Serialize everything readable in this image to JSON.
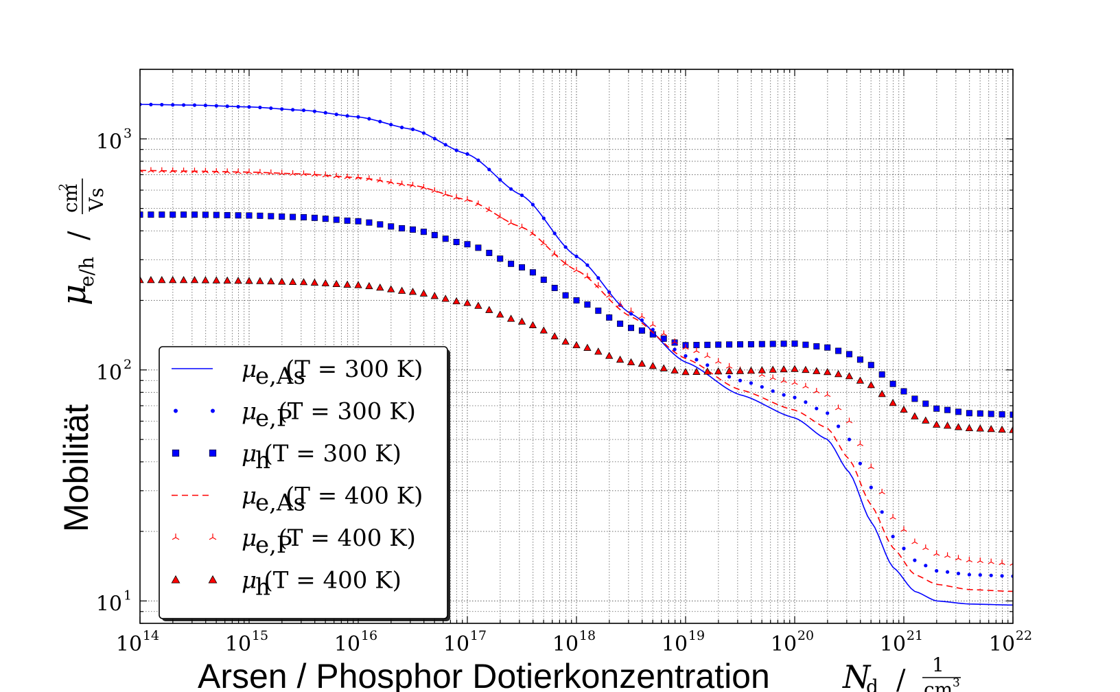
{
  "chart_data": {
    "type": "scatter",
    "title": "",
    "xscale": "log",
    "yscale": "log",
    "xlim": [
      100000000000000.0,
      1e+22
    ],
    "ylim": [
      8,
      2000
    ],
    "grid": true,
    "legend_position": "lower-left",
    "xlabel": {
      "text": "Arsen / Phosphor Dotierkonzentration",
      "symbol": "N",
      "symbol_sub": "d",
      "unit_numerator": "1",
      "unit_denominator": "cm",
      "unit_denominator_exp": "3"
    },
    "ylabel": {
      "text": "Mobilität",
      "symbol": "μ",
      "symbol_sub": "e/h",
      "unit_numerator": "cm",
      "unit_numerator_exp": "2",
      "unit_denominator": "Vs"
    },
    "x_ticks": [
      {
        "base": "10",
        "exp": "14",
        "value": 100000000000000.0
      },
      {
        "base": "10",
        "exp": "15",
        "value": 1000000000000000.0
      },
      {
        "base": "10",
        "exp": "16",
        "value": 1e+16
      },
      {
        "base": "10",
        "exp": "17",
        "value": 1e+17
      },
      {
        "base": "10",
        "exp": "18",
        "value": 1e+18
      },
      {
        "base": "10",
        "exp": "19",
        "value": 1e+19
      },
      {
        "base": "10",
        "exp": "20",
        "value": 1e+20
      },
      {
        "base": "10",
        "exp": "21",
        "value": 1e+21
      },
      {
        "base": "10",
        "exp": "22",
        "value": 1e+22
      }
    ],
    "y_ticks": [
      {
        "base": "10",
        "exp": "1",
        "value": 10
      },
      {
        "base": "10",
        "exp": "2",
        "value": 100
      },
      {
        "base": "10",
        "exp": "3",
        "value": 1000
      }
    ],
    "x_log10": [
      14.0,
      14.5,
      15.0,
      15.5,
      16.0,
      16.5,
      17.0,
      17.5,
      18.0,
      18.5,
      19.0,
      19.5,
      20.0,
      20.3,
      20.5,
      20.7,
      20.9,
      21.1,
      21.3,
      21.6,
      22.0
    ],
    "series": [
      {
        "name": "μ_e,As(T = 300 K)",
        "label_symbol": "μ",
        "label_sub": "e,As",
        "label_rest": "(T = 300 K)",
        "style": "line",
        "color": "#0000ff",
        "values": [
          1410,
          1400,
          1375,
          1330,
          1245,
          1100,
          860,
          570,
          310,
          175,
          108,
          78,
          62,
          50,
          36,
          22,
          14,
          11,
          10,
          9.7,
          9.6
        ]
      },
      {
        "name": "μ_e,P(T = 300 K)",
        "label_symbol": "μ",
        "label_sub": "e,P",
        "label_rest": "(T = 300 K)",
        "style": "dots",
        "color": "#0000ff",
        "values": [
          1410,
          1400,
          1375,
          1330,
          1245,
          1100,
          860,
          570,
          310,
          175,
          115,
          90,
          76,
          65,
          50,
          31,
          19,
          15,
          13.5,
          13,
          12.8
        ]
      },
      {
        "name": "μ_h(T = 300 K)",
        "label_symbol": "μ",
        "label_sub": "h",
        "label_rest": "(T = 300 K)",
        "style": "square",
        "color": "#0000ff",
        "values": [
          470,
          470,
          466,
          458,
          440,
          405,
          350,
          278,
          200,
          152,
          128,
          129,
          130,
          125,
          117,
          105,
          87,
          75,
          68,
          65,
          64
        ]
      },
      {
        "name": "μ_e,As(T = 400 K)",
        "label_symbol": "μ",
        "label_sub": "e,As",
        "label_rest": "(T = 400 K)",
        "style": "dashed",
        "color": "#ff0000",
        "values": [
          730,
          725,
          718,
          705,
          680,
          630,
          545,
          415,
          270,
          170,
          112,
          82,
          67,
          56,
          41,
          26,
          17,
          13,
          11.8,
          11.2,
          11
        ]
      },
      {
        "name": "μ_e,P(T = 400 K)",
        "label_symbol": "μ",
        "label_sub": "e,P",
        "label_rest": "(T = 400 K)",
        "style": "tri_down",
        "color": "#ff0000",
        "values": [
          730,
          725,
          718,
          705,
          680,
          630,
          545,
          415,
          270,
          180,
          125,
          100,
          88,
          78,
          60,
          38,
          23,
          18,
          16,
          15,
          14.5
        ]
      },
      {
        "name": "μ_h(T = 400 K)",
        "label_symbol": "μ",
        "label_sub": "h",
        "label_rest": "(T = 400 K)",
        "style": "triangle",
        "color": "#ff0000",
        "values": [
          245,
          245,
          243,
          240,
          233,
          218,
          195,
          162,
          128,
          108,
          98,
          99,
          101,
          98,
          94,
          86,
          72,
          63,
          58,
          56,
          55
        ]
      }
    ]
  }
}
